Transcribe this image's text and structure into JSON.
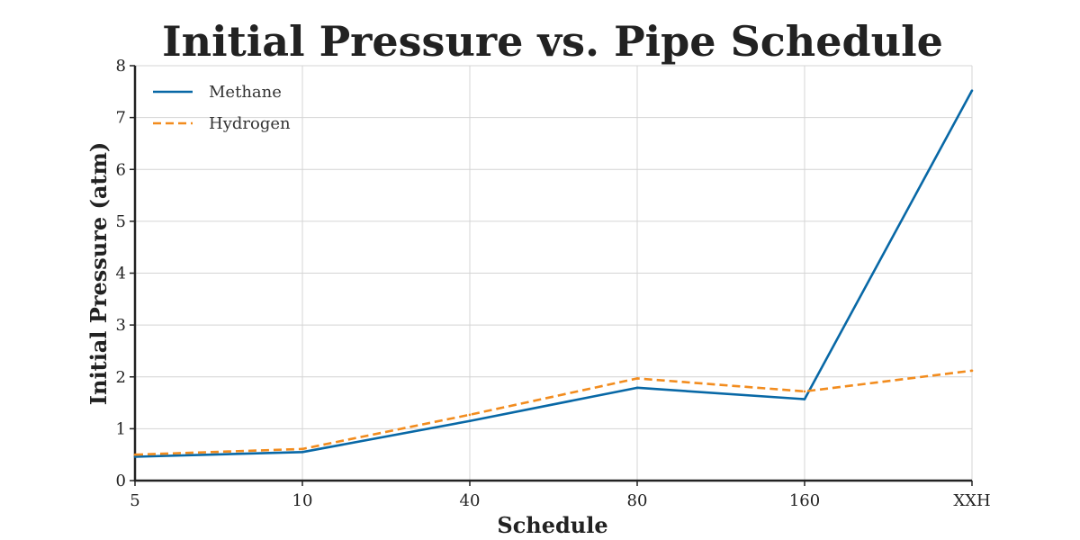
{
  "chart_data": {
    "type": "line",
    "title": "Initial Pressure vs. Pipe Schedule",
    "xlabel": "Schedule",
    "ylabel": "Initial Pressure (atm)",
    "categories": [
      "5",
      "10",
      "40",
      "80",
      "160",
      "XXH"
    ],
    "ylim": [
      0,
      8
    ],
    "yticks": [
      "0",
      "1",
      "2",
      "3",
      "4",
      "5",
      "6",
      "7",
      "8"
    ],
    "grid": true,
    "legend_position": "top-left",
    "series": [
      {
        "name": "Methane",
        "values": [
          0.46,
          0.55,
          1.15,
          1.79,
          1.57,
          7.52
        ],
        "color": "#0868a6",
        "style": "solid"
      },
      {
        "name": "Hydrogen",
        "values": [
          0.5,
          0.61,
          1.27,
          1.97,
          1.72,
          2.12
        ],
        "color": "#f28c1e",
        "style": "dashed"
      }
    ]
  }
}
